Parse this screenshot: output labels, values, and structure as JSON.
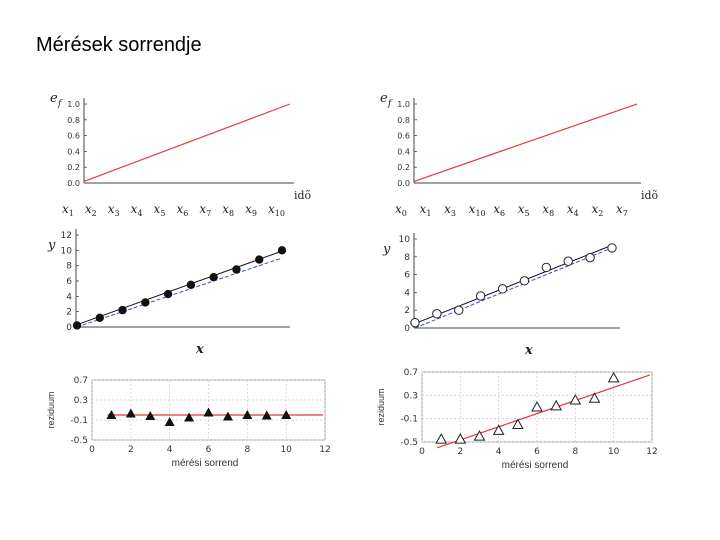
{
  "page": {
    "title": "Mérések sorrendje"
  },
  "colors": {
    "red_line": "#e23b3b",
    "blue_line": "#3b4bd6",
    "fit_line": "#111111",
    "grid": "#cccccc"
  },
  "chart_data": [
    {
      "type": "line",
      "ylabel": "e",
      "ylabel_sub": "f",
      "xlabel": "idõ",
      "ylim": [
        0,
        1
      ],
      "yticks": [
        "1.0",
        "0.8",
        "0.6",
        "0.4",
        "0.2",
        "0.0"
      ],
      "y_start": 0.02,
      "y_end": 1.0,
      "order_labels": [
        [
          "x",
          "1"
        ],
        [
          "x",
          "2"
        ],
        [
          "x",
          "3"
        ],
        [
          "x",
          "4"
        ],
        [
          "x",
          "5"
        ],
        [
          "x",
          "6"
        ],
        [
          "x",
          "7"
        ],
        [
          "x",
          "8"
        ],
        [
          "x",
          "9"
        ],
        [
          "x",
          "10"
        ]
      ]
    },
    {
      "type": "line",
      "ylabel": "e",
      "ylabel_sub": "f",
      "xlabel": "idõ",
      "ylim": [
        0,
        1
      ],
      "yticks": [
        "1.0",
        "0.8",
        "0.6",
        "0.4",
        "0.2",
        "0.0"
      ],
      "y_start": 0.02,
      "y_end": 1.0,
      "order_labels": [
        [
          "x",
          "0"
        ],
        [
          "x",
          "1"
        ],
        [
          "x",
          "3"
        ],
        [
          "x",
          "10"
        ],
        [
          "x",
          "6"
        ],
        [
          "x",
          "5"
        ],
        [
          "x",
          "8"
        ],
        [
          "x",
          "4"
        ],
        [
          "x",
          "2"
        ],
        [
          "x",
          "7"
        ]
      ]
    },
    {
      "type": "scatter",
      "ylabel": "y",
      "xlabel": "x",
      "ylim": [
        0,
        12
      ],
      "yticks": [
        "12",
        "10",
        "8",
        "6",
        "4",
        "2",
        "0"
      ],
      "marker": "filled-circle",
      "x": [
        0,
        1,
        2,
        3,
        4,
        5,
        6,
        7,
        8,
        9
      ],
      "y": [
        0.2,
        1.2,
        2.2,
        3.2,
        4.3,
        5.5,
        6.5,
        7.5,
        8.8,
        10.0
      ],
      "fit_line": {
        "y0": 0.3,
        "y1": 9.9
      },
      "true_line": {
        "y0": 0.0,
        "y1": 9.0
      }
    },
    {
      "type": "scatter",
      "ylabel": "y",
      "xlabel": "x",
      "ylim": [
        0,
        10
      ],
      "yticks": [
        "10",
        "8",
        "6",
        "4",
        "2",
        "0"
      ],
      "marker": "open-circle",
      "x": [
        0,
        1,
        2,
        3,
        4,
        5,
        6,
        7,
        8,
        9
      ],
      "y": [
        0.6,
        1.6,
        2.0,
        3.6,
        4.4,
        5.3,
        6.8,
        7.5,
        7.9,
        9.0
      ],
      "fit_line": {
        "y0": 0.5,
        "y1": 9.3
      },
      "true_line": {
        "y0": 0.0,
        "y1": 9.0
      }
    },
    {
      "type": "scatter",
      "ylabel": "reziduum",
      "xlabel": "mérési sorrend",
      "xlim": [
        0,
        12
      ],
      "ylim": [
        -0.5,
        0.7
      ],
      "xticks": [
        "0",
        "2",
        "4",
        "6",
        "8",
        "10",
        "12"
      ],
      "yticks": [
        "0.7",
        "0.3",
        "-0.1",
        "-0.5"
      ],
      "marker": "filled-triangle",
      "x": [
        1,
        2,
        3,
        4,
        5,
        6,
        7,
        8,
        9,
        10
      ],
      "y": [
        0.0,
        0.03,
        -0.02,
        -0.14,
        -0.05,
        0.05,
        -0.03,
        0.0,
        -0.01,
        0.0
      ],
      "line": {
        "y0": 0.0,
        "y1": 0.0
      }
    },
    {
      "type": "scatter",
      "ylabel": "reziduum",
      "xlabel": "mérési sorrend",
      "xlim": [
        0,
        12
      ],
      "ylim": [
        -0.5,
        0.7
      ],
      "xticks": [
        "0",
        "2",
        "4",
        "6",
        "8",
        "10",
        "12"
      ],
      "yticks": [
        "0.7",
        "0.3",
        "-0.1",
        "-0.5"
      ],
      "marker": "open-triangle",
      "x": [
        1,
        2,
        3,
        4,
        5,
        6,
        7,
        8,
        9,
        10
      ],
      "y": [
        -0.45,
        -0.45,
        -0.4,
        -0.3,
        -0.2,
        0.1,
        0.12,
        0.22,
        0.25,
        0.6
      ],
      "line": {
        "y0": -0.6,
        "y1": 0.65
      }
    }
  ]
}
